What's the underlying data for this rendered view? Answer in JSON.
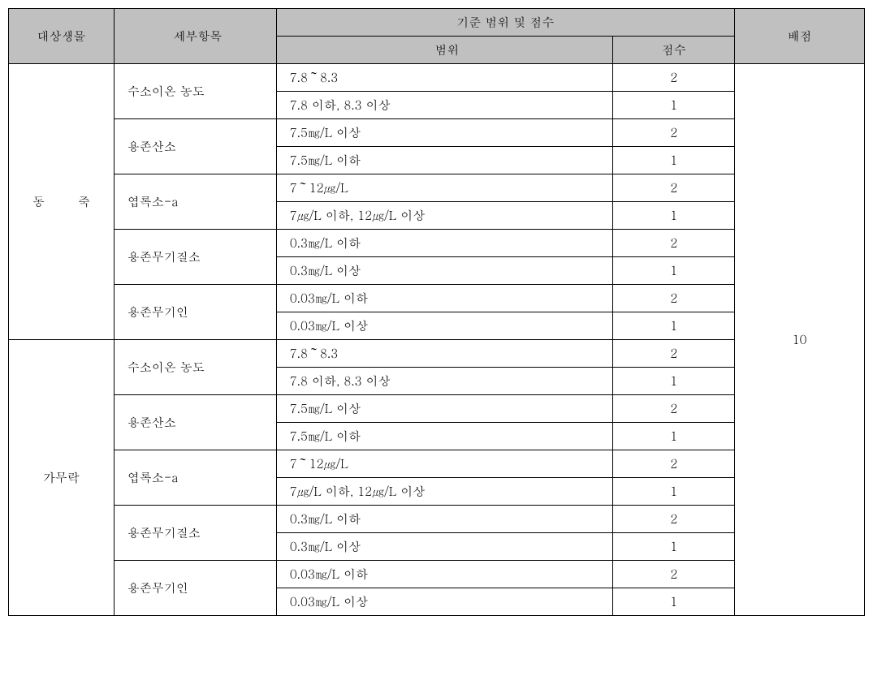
{
  "header": {
    "organism": "대상생물",
    "item": "세부항목",
    "criteria_group": "기준 범위 및 점수",
    "range": "범위",
    "score": "점수",
    "allocation": "배점"
  },
  "allocation_value": "10",
  "groups": [
    {
      "organism": "동 죽",
      "organism_class": "organism-cell",
      "items": [
        {
          "label": "수소이온 농도",
          "rows": [
            {
              "range": "7.8～8.3",
              "score": "2"
            },
            {
              "range": "7.8 이하, 8.3 이상",
              "score": "1"
            }
          ]
        },
        {
          "label": "용존산소",
          "rows": [
            {
              "range": "7.5㎎/L 이상",
              "score": "2"
            },
            {
              "range": "7.5㎎/L 이하",
              "score": "1"
            }
          ]
        },
        {
          "label": "엽록소-a",
          "rows": [
            {
              "range": "7～12㎍/L",
              "score": "2"
            },
            {
              "range": "7㎍/L 이하, 12㎍/L 이상",
              "score": "1"
            }
          ]
        },
        {
          "label": "용존무기질소",
          "rows": [
            {
              "range": "0.3㎎/L 이하",
              "score": "2"
            },
            {
              "range": "0.3㎎/L 이상",
              "score": "1"
            }
          ]
        },
        {
          "label": "용존무기인",
          "rows": [
            {
              "range": "0.03㎎/L 이하",
              "score": "2"
            },
            {
              "range": "0.03㎎/L 이상",
              "score": "1"
            }
          ]
        }
      ]
    },
    {
      "organism": "가무락",
      "organism_class": "organism-cell2",
      "items": [
        {
          "label": "수소이온 농도",
          "rows": [
            {
              "range": "7.8～8.3",
              "score": "2"
            },
            {
              "range": "7.8 이하, 8.3 이상",
              "score": "1"
            }
          ]
        },
        {
          "label": "용존산소",
          "rows": [
            {
              "range": "7.5㎎/L 이상",
              "score": "2"
            },
            {
              "range": "7.5㎎/L 이하",
              "score": "1"
            }
          ]
        },
        {
          "label": "엽록소-a",
          "rows": [
            {
              "range": "7～12㎍/L",
              "score": "2"
            },
            {
              "range": "7㎍/L 이하, 12㎍/L 이상",
              "score": "1"
            }
          ]
        },
        {
          "label": "용존무기질소",
          "rows": [
            {
              "range": "0.3㎎/L 이하",
              "score": "2"
            },
            {
              "range": "0.3㎎/L 이상",
              "score": "1"
            }
          ]
        },
        {
          "label": "용존무기인",
          "rows": [
            {
              "range": "0.03㎎/L 이하",
              "score": "2"
            },
            {
              "range": "0.03㎎/L 이상",
              "score": "1"
            }
          ]
        }
      ]
    }
  ]
}
